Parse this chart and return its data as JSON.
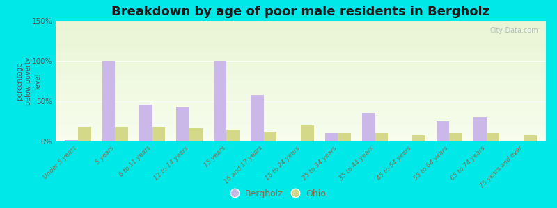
{
  "title": "Breakdown by age of poor male residents in Bergholz",
  "ylabel": "percentage\nbelow poverty\nlevel",
  "categories": [
    "Under 5 years",
    "5 years",
    "6 to 11 years",
    "12 to 14 years",
    "15 years",
    "16 and 17 years",
    "18 to 24 years",
    "25 to 34 years",
    "35 to 44 years",
    "45 to 54 years",
    "55 to 64 years",
    "65 to 74 years",
    "75 years and over"
  ],
  "bergholz_values": [
    2,
    100,
    46,
    43,
    100,
    58,
    0,
    10,
    35,
    0,
    25,
    30,
    0
  ],
  "ohio_values": [
    18,
    18,
    18,
    16,
    15,
    12,
    20,
    10,
    10,
    8,
    10,
    10,
    8
  ],
  "bar_color_bergholz": "#c9b8e8",
  "bar_color_ohio": "#d4d98a",
  "title_color": "#1a1a1a",
  "axis_color": "#555555",
  "tick_label_color": "#8b6e4e",
  "legend_label_bergholz": "Bergholz",
  "legend_label_ohio": "Ohio",
  "ylim": [
    0,
    150
  ],
  "yticks": [
    0,
    50,
    100,
    150
  ],
  "ytick_labels": [
    "0%",
    "50%",
    "100%",
    "150%"
  ],
  "bar_width": 0.35,
  "watermark": "City-Data.com",
  "figsize": [
    8.0,
    3.0
  ],
  "dpi": 100,
  "cyan_bg": "#00e8e8"
}
